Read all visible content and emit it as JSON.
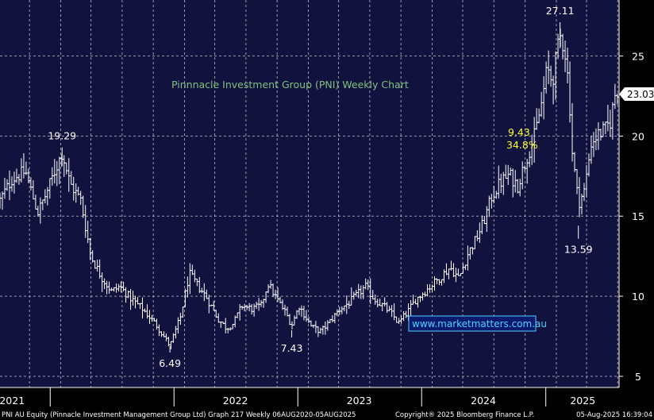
{
  "title": "Pinnnacle Investment Group (PNI) Weekly Chart",
  "watermark": "www.marketmatters.com.au",
  "footer": {
    "left": "PNI AU Equity (Pinnacle Investment Management Group Ltd) Graph 217  Weekly 06AUG2020-05AUG2025",
    "center": "Copyright® 2025 Bloomberg Finance L.P.",
    "right": "05-Aug-2025 16:39:04"
  },
  "colors": {
    "plot_bg": "#12123f",
    "grid": "#c8c8c8",
    "bars": "#ffffff",
    "title": "#7ec27e",
    "highlight": "#ffff33",
    "watermark_text": "#4fd0ff",
    "watermark_bg": "#0c1a6e",
    "last_price_bg": "#ffffff"
  },
  "chart_data": {
    "type": "line",
    "subtype": "weekly price bars",
    "x_tick_labels": [
      "2021",
      "2022",
      "2023",
      "2024",
      "2025"
    ],
    "y_ticks": [
      5,
      10,
      15,
      20,
      25
    ],
    "ylim": [
      4.8,
      28.0
    ],
    "xlim": [
      "2020-08-06",
      "2025-08-05"
    ],
    "grid": true,
    "last_price": {
      "label": "23.03",
      "value": 23.03
    },
    "annotations": [
      {
        "text": "19.29",
        "date": "2021-02-05",
        "value": 19.29,
        "position": "above"
      },
      {
        "text": "6.49",
        "date": "2021-12-20",
        "value": 6.49,
        "position": "below"
      },
      {
        "text": "7.43",
        "date": "2022-12-14",
        "value": 7.43,
        "position": "below"
      },
      {
        "text": "27.11",
        "date": "2025-02-12",
        "value": 27.11,
        "position": "above"
      },
      {
        "text": "13.59",
        "date": "2025-04-07",
        "value": 13.59,
        "position": "below"
      }
    ],
    "move_label": {
      "lines": [
        "9.43",
        "34.8%"
      ],
      "color": "highlight"
    },
    "series": [
      {
        "price_anchors": [
          [
            "2020-08-06",
            16.0
          ],
          [
            "2020-09-10",
            17.3
          ],
          [
            "2020-10-20",
            17.8
          ],
          [
            "2020-11-25",
            15.2
          ],
          [
            "2020-12-20",
            16.4
          ],
          [
            "2021-01-18",
            18.0
          ],
          [
            "2021-02-05",
            19.0
          ],
          [
            "2021-03-01",
            17.0
          ],
          [
            "2021-04-01",
            16.0
          ],
          [
            "2021-05-01",
            12.5
          ],
          [
            "2021-06-01",
            11.2
          ],
          [
            "2021-07-01",
            10.3
          ],
          [
            "2021-07-25",
            10.6
          ],
          [
            "2021-08-25",
            9.9
          ],
          [
            "2021-10-01",
            9.2
          ],
          [
            "2021-11-10",
            8.2
          ],
          [
            "2021-12-20",
            6.9
          ],
          [
            "2022-01-20",
            8.7
          ],
          [
            "2022-02-15",
            11.4
          ],
          [
            "2022-03-10",
            10.7
          ],
          [
            "2022-04-05",
            10.0
          ],
          [
            "2022-05-10",
            8.6
          ],
          [
            "2022-06-05",
            8.0
          ],
          [
            "2022-06-25",
            8.3
          ],
          [
            "2022-07-20",
            9.4
          ],
          [
            "2022-08-20",
            9.2
          ],
          [
            "2022-09-15",
            9.4
          ],
          [
            "2022-10-05",
            10.8
          ],
          [
            "2022-11-01",
            9.8
          ],
          [
            "2022-11-25",
            9.0
          ],
          [
            "2022-12-14",
            8.2
          ],
          [
            "2023-01-05",
            9.4
          ],
          [
            "2023-02-10",
            8.1
          ],
          [
            "2023-03-10",
            7.8
          ],
          [
            "2023-04-05",
            8.4
          ],
          [
            "2023-05-05",
            9.2
          ],
          [
            "2023-06-01",
            9.6
          ],
          [
            "2023-06-25",
            10.1
          ],
          [
            "2023-07-20",
            10.6
          ],
          [
            "2023-08-15",
            9.8
          ],
          [
            "2023-09-10",
            9.4
          ],
          [
            "2023-10-05",
            8.9
          ],
          [
            "2023-10-25",
            8.3
          ],
          [
            "2023-11-20",
            9.0
          ],
          [
            "2023-12-15",
            9.8
          ],
          [
            "2024-01-10",
            10.3
          ],
          [
            "2024-02-05",
            10.8
          ],
          [
            "2024-03-01",
            11.3
          ],
          [
            "2024-03-25",
            11.8
          ],
          [
            "2024-04-20",
            11.1
          ],
          [
            "2024-05-15",
            12.6
          ],
          [
            "2024-06-10",
            13.6
          ],
          [
            "2024-07-01",
            14.6
          ],
          [
            "2024-07-25",
            16.2
          ],
          [
            "2024-08-20",
            17.1
          ],
          [
            "2024-09-15",
            17.6
          ],
          [
            "2024-10-10",
            16.9
          ],
          [
            "2024-11-05",
            18.6
          ],
          [
            "2024-11-30",
            20.1
          ],
          [
            "2024-12-20",
            22.1
          ],
          [
            "2025-01-05",
            24.2
          ],
          [
            "2025-01-20",
            23.4
          ],
          [
            "2025-02-01",
            24.9
          ],
          [
            "2025-02-12",
            26.2
          ],
          [
            "2025-02-25",
            25.6
          ],
          [
            "2025-03-10",
            23.0
          ],
          [
            "2025-03-20",
            19.0
          ],
          [
            "2025-04-07",
            15.8
          ],
          [
            "2025-04-25",
            16.6
          ],
          [
            "2025-05-15",
            19.6
          ],
          [
            "2025-06-05",
            20.1
          ],
          [
            "2025-06-25",
            20.4
          ],
          [
            "2025-07-10",
            20.9
          ],
          [
            "2025-07-25",
            22.7
          ],
          [
            "2025-08-05",
            23.03
          ]
        ]
      }
    ]
  }
}
